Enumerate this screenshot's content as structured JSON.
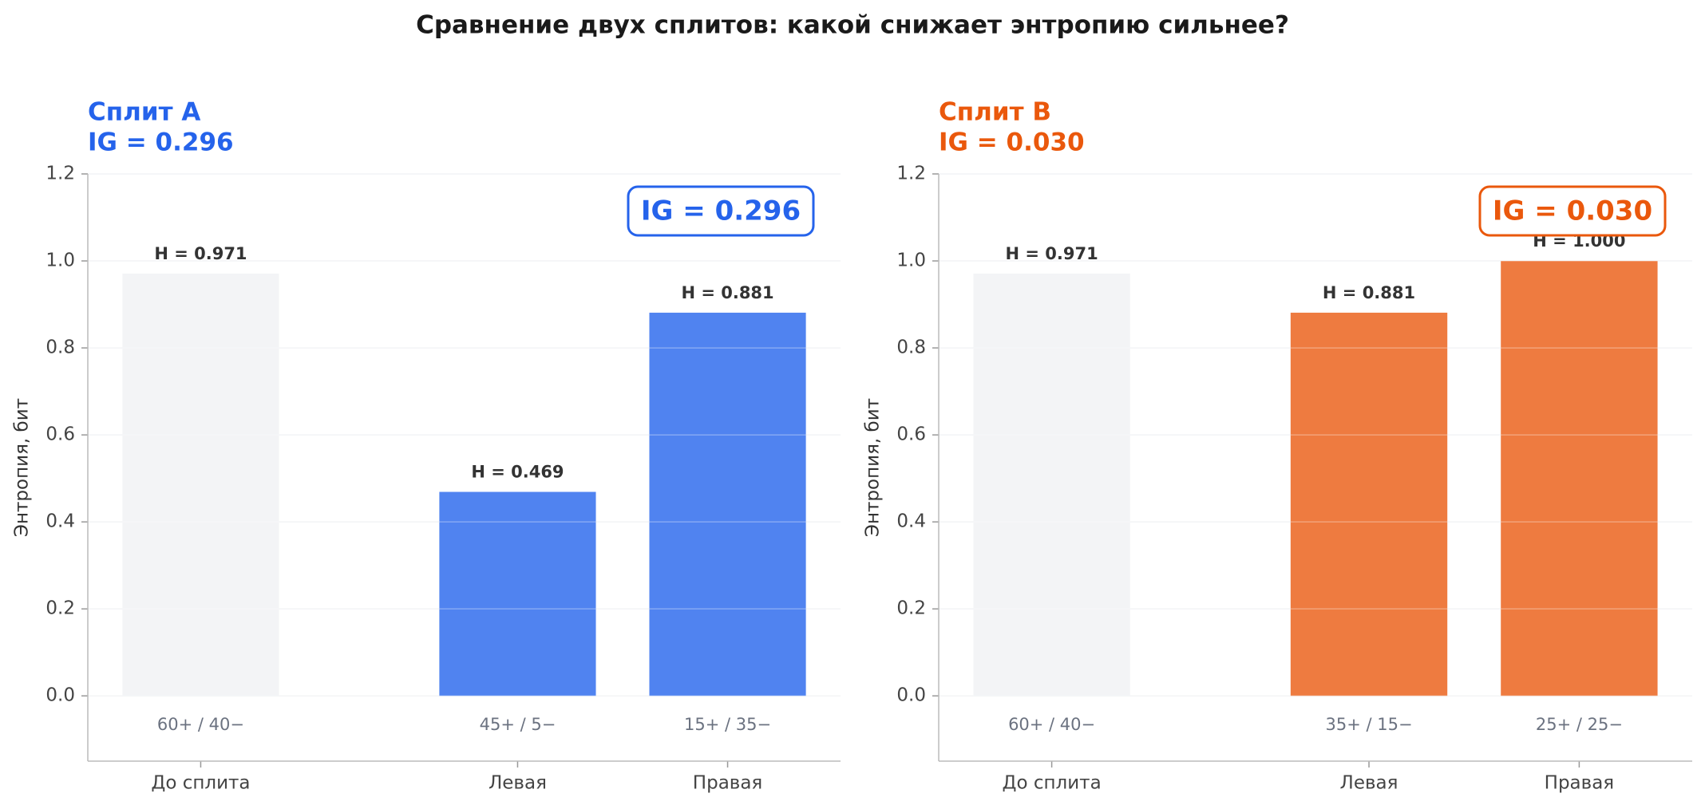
{
  "title": "Сравнение двух сплитов: какой снижает энтропию сильнее?",
  "chart_data": [
    {
      "type": "bar",
      "title": "Сплит A",
      "subtitle": "IG = 0.296",
      "title_color": "#2563eb",
      "annotation": "IG = 0.296",
      "ylabel": "Энтропия, бит",
      "categories": [
        "До сплита",
        "Левая",
        "Правая"
      ],
      "class_labels": [
        "60+ / 40−",
        "45+ / 5−",
        "15+ / 35−"
      ],
      "values": [
        0.971,
        0.469,
        0.881
      ],
      "value_labels": [
        "H = 0.971",
        "H = 0.469",
        "H = 0.881"
      ],
      "colors": [
        "#f3f4f6",
        "#5083f0",
        "#5083f0"
      ],
      "ylim": [
        -0.15,
        1.2
      ],
      "yticks": [
        {
          "value": 0,
          "label": "0.0"
        },
        0.2,
        0.4,
        0.6,
        0.8,
        {
          "value": 1,
          "label": "1.0"
        },
        1.2
      ],
      "grid": true
    },
    {
      "type": "bar",
      "title": "Сплит B",
      "subtitle": "IG = 0.030",
      "title_color": "#ea580c",
      "annotation": "IG = 0.030",
      "ylabel": "Энтропия, бит",
      "categories": [
        "До сплита",
        "Левая",
        "Правая"
      ],
      "class_labels": [
        "60+ / 40−",
        "35+ / 15−",
        "25+ / 25−"
      ],
      "values": [
        0.971,
        0.881,
        1.0
      ],
      "value_labels": [
        "H = 0.971",
        "H = 0.881",
        "H = 1.000"
      ],
      "colors": [
        "#f3f4f6",
        "#ee7b40",
        "#ee7b40"
      ],
      "ylim": [
        -0.15,
        1.2
      ],
      "yticks": [
        {
          "value": 0,
          "label": "0.0"
        },
        0.2,
        0.4,
        0.6,
        0.8,
        {
          "value": 1,
          "label": "1.0"
        },
        1.2
      ],
      "grid": true
    }
  ]
}
